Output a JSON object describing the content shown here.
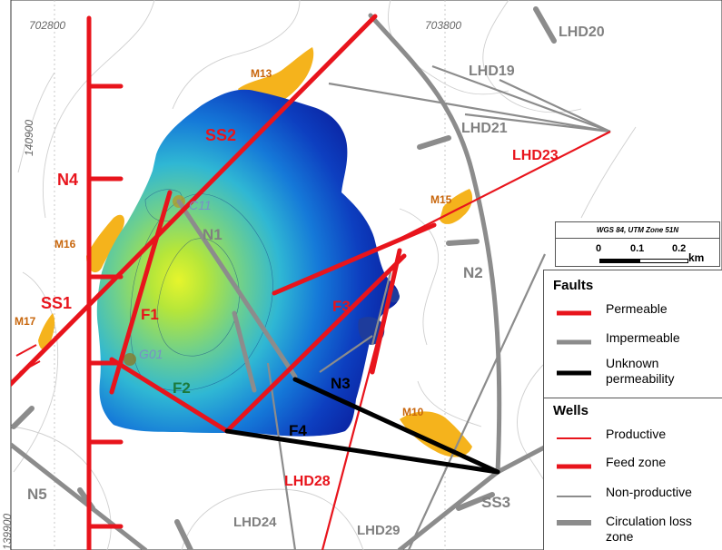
{
  "coordinates": {
    "x_labels": [
      "702800",
      "703800"
    ],
    "y_labels": [
      "140900",
      "139900"
    ]
  },
  "faults": {
    "permeable": [
      "SS2",
      "N4",
      "SS1",
      "F1",
      "F3"
    ],
    "impermeable": [
      "N1",
      "N2",
      "N5",
      "SS3"
    ],
    "unknown": [
      "N3",
      "F4"
    ],
    "other": [
      "F2"
    ]
  },
  "wells": {
    "productive": [
      "LHD23",
      "LHD28"
    ],
    "non_productive": [
      "LHD20",
      "LHD19",
      "LHD21",
      "LHD24",
      "LHD29"
    ]
  },
  "surface_features": [
    "M13",
    "M15",
    "M16",
    "M17",
    "M10"
  ],
  "well_points": [
    "C11",
    "G01"
  ],
  "scale": {
    "crs": "WGS 84, UTM Zone 51N",
    "ticks": [
      "0",
      "0.1",
      "0.2"
    ],
    "unit": "km"
  },
  "legend": {
    "faults_title": "Faults",
    "permeable": "Permeable",
    "impermeable": "Impermeable",
    "unknown": "Unknown permeability",
    "wells_title": "Wells",
    "productive": "Productive",
    "feed_zone": "Feed zone",
    "non_productive": "Non-productive",
    "circulation_loss": "Circulation loss zone"
  },
  "colors": {
    "permeable": "#e8141c",
    "impermeable": "#8c8c8c",
    "unknown": "#000000",
    "altered_zone": "#f5b31c",
    "anomaly_high": "#b8e63c",
    "anomaly_low": "#0a23a8"
  }
}
